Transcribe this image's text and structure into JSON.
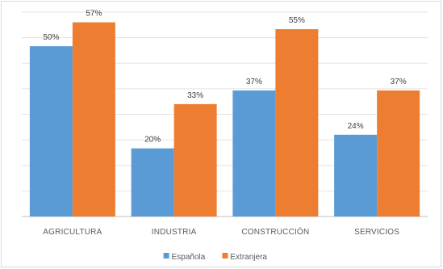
{
  "chart_data": {
    "type": "bar",
    "categories": [
      "AGRICULTURA",
      "INDUSTRIA",
      "CONSTRUCCIÓN",
      "SERVICIOS"
    ],
    "series": [
      {
        "name": "Española",
        "values": [
          50,
          20,
          37,
          24
        ],
        "labels": [
          "50%",
          "20%",
          "37%",
          "24%"
        ],
        "color": "#5b9bd5"
      },
      {
        "name": "Extranjera",
        "values": [
          57,
          33,
          55,
          37
        ],
        "labels": [
          "57%",
          "33%",
          "55%",
          "37%"
        ],
        "color": "#ed7d31"
      }
    ],
    "ylim": [
      0,
      60
    ],
    "y_gridline_step": 7.5,
    "grid": true,
    "legend_position": "bottom"
  }
}
